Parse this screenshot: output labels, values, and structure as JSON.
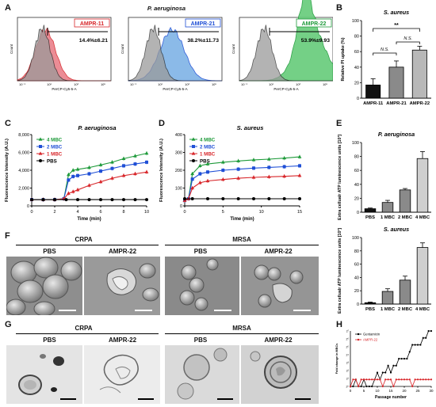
{
  "panels": {
    "A": "A",
    "B": "B",
    "C": "C",
    "D": "D",
    "E": "E",
    "F": "F",
    "G": "G",
    "H": "H"
  },
  "colors": {
    "red": "#d8262a",
    "blue": "#1f4fd6",
    "green": "#1e9a3a",
    "black": "#000000",
    "bar_grey1": "#1a1a1a",
    "bar_grey2": "#8a8a8a",
    "bar_grey3": "#bdbdbd"
  },
  "histograms": {
    "title": "P. aeruginosa",
    "ylabel": "Count",
    "xlabel": "PerCP-Cy5-5-A",
    "ticks": [
      "10⁻¹",
      "10¹",
      "10³",
      "10⁵"
    ],
    "items": [
      {
        "name": "AMPR-11",
        "value": "14.4%±6.21",
        "color": "#d8262a",
        "fill": "#e9808a"
      },
      {
        "name": "AMPR-21",
        "value": "38.2%±11.73",
        "color": "#1f4fd6",
        "fill": "#7fb3e6"
      },
      {
        "name": "AMPR-22",
        "value": "53.9%±9.93",
        "color": "#1e9a3a",
        "fill": "#66cc7a"
      }
    ]
  },
  "chart_data": [
    {
      "id": "B",
      "type": "bar",
      "title": "S. aureus",
      "ylabel": "Relative PI uptake (%)",
      "categories": [
        "AMPR-11",
        "AMPR-21",
        "AMPR-22"
      ],
      "values": [
        17,
        40,
        62
      ],
      "errors": [
        8,
        8,
        5
      ],
      "ylim": [
        0,
        100
      ],
      "yticks": [
        "0",
        "20",
        "40",
        "60",
        "80",
        "100"
      ],
      "annotations": [
        "**",
        "N.S.",
        "N.S."
      ]
    },
    {
      "id": "C",
      "type": "line",
      "title": "P. aeruginosa",
      "xlabel": "Time (min)",
      "ylabel": "Fluorescence Intensity (A.U.)",
      "xlim": [
        0,
        10
      ],
      "ylim": [
        0,
        8000
      ],
      "xticks": [
        "0",
        "2",
        "4",
        "6",
        "8",
        "10"
      ],
      "yticks": [
        "0",
        "2,000",
        "4,000",
        "6,000",
        "8,000"
      ],
      "series": [
        {
          "name": "4 MBC",
          "color": "#1e9a3a",
          "marker": "tri",
          "points": [
            [
              0,
              700
            ],
            [
              1,
              700
            ],
            [
              2,
              700
            ],
            [
              2.8,
              800
            ],
            [
              3.2,
              3500
            ],
            [
              3.6,
              4000
            ],
            [
              4,
              4100
            ],
            [
              5,
              4300
            ],
            [
              6,
              4600
            ],
            [
              7,
              4900
            ],
            [
              8,
              5300
            ],
            [
              9,
              5600
            ],
            [
              10,
              5900
            ]
          ]
        },
        {
          "name": "2 MBC",
          "color": "#1f4fd6",
          "marker": "sq",
          "points": [
            [
              0,
              700
            ],
            [
              1,
              700
            ],
            [
              2,
              700
            ],
            [
              2.8,
              800
            ],
            [
              3.2,
              2900
            ],
            [
              3.6,
              3300
            ],
            [
              4,
              3400
            ],
            [
              5,
              3600
            ],
            [
              6,
              3900
            ],
            [
              7,
              4200
            ],
            [
              8,
              4500
            ],
            [
              9,
              4700
            ],
            [
              10,
              4900
            ]
          ]
        },
        {
          "name": "1 MBC",
          "color": "#d8262a",
          "marker": "tri",
          "points": [
            [
              0,
              700
            ],
            [
              1,
              700
            ],
            [
              2,
              700
            ],
            [
              2.8,
              800
            ],
            [
              3.2,
              1400
            ],
            [
              3.6,
              1600
            ],
            [
              4,
              1800
            ],
            [
              5,
              2300
            ],
            [
              6,
              2700
            ],
            [
              7,
              3100
            ],
            [
              8,
              3400
            ],
            [
              9,
              3600
            ],
            [
              10,
              3800
            ]
          ]
        },
        {
          "name": "PBS",
          "color": "#000000",
          "marker": "dot",
          "points": [
            [
              0,
              700
            ],
            [
              1,
              700
            ],
            [
              2,
              700
            ],
            [
              3,
              700
            ],
            [
              4,
              700
            ],
            [
              5,
              700
            ],
            [
              6,
              700
            ],
            [
              7,
              700
            ],
            [
              8,
              700
            ],
            [
              9,
              700
            ],
            [
              10,
              700
            ]
          ]
        }
      ]
    },
    {
      "id": "D",
      "type": "line",
      "title": "S. aureus",
      "xlabel": "Time (min)",
      "ylabel": "Fluorescence Intensity (A.U.)",
      "xlim": [
        0,
        15
      ],
      "ylim": [
        0,
        400
      ],
      "xticks": [
        "0",
        "5",
        "10",
        "15"
      ],
      "yticks": [
        "0",
        "100",
        "200",
        "300",
        "400"
      ],
      "series": [
        {
          "name": "4 MBC",
          "color": "#1e9a3a",
          "marker": "tri",
          "points": [
            [
              0,
              30
            ],
            [
              0.5,
              40
            ],
            [
              1,
              180
            ],
            [
              2,
              225
            ],
            [
              3,
              235
            ],
            [
              5,
              245
            ],
            [
              7,
              252
            ],
            [
              9,
              258
            ],
            [
              11,
              262
            ],
            [
              13,
              268
            ],
            [
              15,
              275
            ]
          ]
        },
        {
          "name": "2 MBC",
          "color": "#1f4fd6",
          "marker": "sq",
          "points": [
            [
              0,
              30
            ],
            [
              0.5,
              40
            ],
            [
              1,
              150
            ],
            [
              2,
              180
            ],
            [
              3,
              190
            ],
            [
              5,
              200
            ],
            [
              7,
              206
            ],
            [
              9,
              212
            ],
            [
              11,
              216
            ],
            [
              13,
              220
            ],
            [
              15,
              225
            ]
          ]
        },
        {
          "name": "1 MBC",
          "color": "#d8262a",
          "marker": "tri",
          "points": [
            [
              0,
              30
            ],
            [
              0.5,
              40
            ],
            [
              1,
              100
            ],
            [
              2,
              130
            ],
            [
              3,
              140
            ],
            [
              5,
              148
            ],
            [
              7,
              155
            ],
            [
              9,
              160
            ],
            [
              11,
              163
            ],
            [
              13,
              166
            ],
            [
              15,
              170
            ]
          ]
        },
        {
          "name": "PBS",
          "color": "#000000",
          "marker": "dot",
          "points": [
            [
              0,
              40
            ],
            [
              1,
              40
            ],
            [
              3,
              40
            ],
            [
              5,
              40
            ],
            [
              7,
              40
            ],
            [
              9,
              40
            ],
            [
              11,
              40
            ],
            [
              13,
              40
            ],
            [
              15,
              40
            ]
          ]
        }
      ]
    },
    {
      "id": "E1",
      "type": "bar",
      "title": "P. aeruginosa",
      "ylabel": "Extra cellualr ATP luminescence units [10³]",
      "categories": [
        "PBS",
        "1 MBC",
        "2 MBC",
        "4 MBC"
      ],
      "values": [
        5,
        14,
        32,
        77
      ],
      "errors": [
        1,
        3,
        2,
        10
      ],
      "ylim": [
        0,
        100
      ],
      "yticks": [
        "0",
        "20",
        "40",
        "60",
        "80",
        "100"
      ]
    },
    {
      "id": "E2",
      "type": "bar",
      "title": "S. aureus",
      "ylabel": "Extra cellualr ATP luminescence units [10³]",
      "categories": [
        "PBS",
        "1 MBC",
        "2 MBC",
        "4 MBC"
      ],
      "values": [
        2,
        19,
        36,
        85
      ],
      "errors": [
        1,
        4,
        6,
        7
      ],
      "ylim": [
        0,
        100
      ],
      "yticks": [
        "0",
        "20",
        "40",
        "60",
        "80",
        "100"
      ]
    },
    {
      "id": "H",
      "type": "line",
      "xlabel": "Passage number",
      "ylabel": "Fold change in MBCs",
      "xlim": [
        0,
        30
      ],
      "ylim": [
        0,
        8
      ],
      "xticks": [
        "0",
        "5",
        "10",
        "15",
        "20",
        "25",
        "30"
      ],
      "yticks": [
        "2⁰",
        "2¹",
        "2²",
        "2³",
        "2⁴",
        "2⁵",
        "2⁶",
        "2⁷"
      ],
      "series": [
        {
          "name": "Gentamicin",
          "color": "#000000",
          "points": [
            [
              0,
              0
            ],
            [
              1,
              0
            ],
            [
              2,
              1
            ],
            [
              3,
              0
            ],
            [
              4,
              0
            ],
            [
              5,
              1
            ],
            [
              6,
              0
            ],
            [
              7,
              0
            ],
            [
              8,
              0
            ],
            [
              9,
              1
            ],
            [
              10,
              2
            ],
            [
              11,
              1
            ],
            [
              12,
              2
            ],
            [
              13,
              2
            ],
            [
              14,
              3
            ],
            [
              15,
              2
            ],
            [
              16,
              3
            ],
            [
              17,
              3
            ],
            [
              18,
              4
            ],
            [
              19,
              4
            ],
            [
              20,
              4
            ],
            [
              21,
              4
            ],
            [
              22,
              5
            ],
            [
              23,
              6
            ],
            [
              24,
              6
            ],
            [
              25,
              6
            ],
            [
              26,
              6
            ],
            [
              27,
              7
            ],
            [
              28,
              7
            ],
            [
              29,
              8
            ],
            [
              30,
              8
            ]
          ]
        },
        {
          "name": "AMPR-22",
          "color": "#d8262a",
          "points": [
            [
              0,
              0
            ],
            [
              1,
              1
            ],
            [
              2,
              1
            ],
            [
              3,
              0
            ],
            [
              4,
              1
            ],
            [
              5,
              1
            ],
            [
              6,
              1
            ],
            [
              7,
              1
            ],
            [
              8,
              1
            ],
            [
              9,
              1
            ],
            [
              10,
              1
            ],
            [
              11,
              1
            ],
            [
              12,
              0
            ],
            [
              13,
              1
            ],
            [
              14,
              1
            ],
            [
              15,
              1
            ],
            [
              16,
              0
            ],
            [
              17,
              1
            ],
            [
              18,
              1
            ],
            [
              19,
              1
            ],
            [
              20,
              1
            ],
            [
              21,
              1
            ],
            [
              22,
              1
            ],
            [
              23,
              0
            ],
            [
              24,
              1
            ],
            [
              25,
              1
            ],
            [
              26,
              1
            ],
            [
              27,
              1
            ],
            [
              28,
              1
            ],
            [
              29,
              1
            ],
            [
              30,
              1
            ]
          ]
        }
      ]
    }
  ],
  "sem_F": {
    "groups": [
      {
        "title": "CRPA",
        "left": "PBS",
        "right": "AMPR-22"
      },
      {
        "title": "MRSA",
        "left": "PBS",
        "right": "AMPR-22"
      }
    ]
  },
  "tem_G": {
    "groups": [
      {
        "title": "CRPA",
        "left": "PBS",
        "right": "AMPR-22"
      },
      {
        "title": "MRSA",
        "left": "PBS",
        "right": "AMPR-22"
      }
    ]
  }
}
